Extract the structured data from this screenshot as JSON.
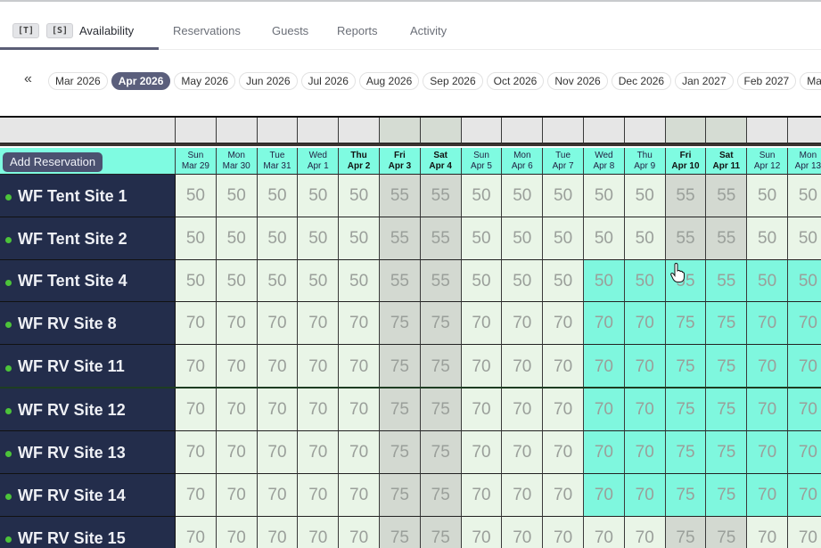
{
  "nav": {
    "badges": [
      "[T]",
      "[S]"
    ],
    "tabs": [
      {
        "label": "Availability",
        "active": true
      },
      {
        "label": "Reservations"
      },
      {
        "label": "Guests"
      },
      {
        "label": "Reports"
      },
      {
        "label": "Activity"
      }
    ]
  },
  "months": {
    "prev_icon": "«",
    "items": [
      "Mar 2026",
      "Apr 2026",
      "May 2026",
      "Jun 2026",
      "Jul 2026",
      "Aug 2026",
      "Sep 2026",
      "Oct 2026",
      "Nov 2026",
      "Dec 2026",
      "Jan 2027",
      "Feb 2027",
      "Ma"
    ],
    "active": "Apr 2026"
  },
  "grid": {
    "add_reservation": "Add Reservation",
    "days": [
      {
        "dow": "Sun",
        "date": "Mar 29",
        "weekend": false
      },
      {
        "dow": "Mon",
        "date": "Mar 30",
        "weekend": false
      },
      {
        "dow": "Tue",
        "date": "Mar 31",
        "weekend": false
      },
      {
        "dow": "Wed",
        "date": "Apr 1",
        "weekend": false
      },
      {
        "dow": "Thu",
        "date": "Apr 2",
        "weekend": false,
        "bold": true
      },
      {
        "dow": "Fri",
        "date": "Apr 3",
        "weekend": true
      },
      {
        "dow": "Sat",
        "date": "Apr 4",
        "weekend": true
      },
      {
        "dow": "Sun",
        "date": "Apr 5",
        "weekend": false
      },
      {
        "dow": "Mon",
        "date": "Apr 6",
        "weekend": false
      },
      {
        "dow": "Tue",
        "date": "Apr 7",
        "weekend": false
      },
      {
        "dow": "Wed",
        "date": "Apr 8",
        "weekend": false
      },
      {
        "dow": "Thu",
        "date": "Apr 9",
        "weekend": false
      },
      {
        "dow": "Fri",
        "date": "Apr 10",
        "weekend": true
      },
      {
        "dow": "Sat",
        "date": "Apr 11",
        "weekend": true
      },
      {
        "dow": "Sun",
        "date": "Apr 12",
        "weekend": false
      },
      {
        "dow": "Mon",
        "date": "Apr 13",
        "weekend": false
      }
    ],
    "selection": {
      "from": "Apr 8",
      "color": "#7ff7de"
    },
    "sites": [
      {
        "name": "WF Tent Site 1",
        "status": "green",
        "selected": false,
        "prices": [
          50,
          50,
          50,
          50,
          50,
          55,
          55,
          50,
          50,
          50,
          50,
          50,
          55,
          55,
          50,
          50
        ]
      },
      {
        "name": "WF Tent Site 2",
        "status": "green",
        "selected": false,
        "prices": [
          50,
          50,
          50,
          50,
          50,
          55,
          55,
          50,
          50,
          50,
          50,
          50,
          55,
          55,
          50,
          50
        ]
      },
      {
        "name": "WF Tent Site 4",
        "status": "green",
        "selected": true,
        "prices": [
          50,
          50,
          50,
          50,
          50,
          55,
          55,
          50,
          50,
          50,
          50,
          50,
          55,
          55,
          50,
          50
        ]
      },
      {
        "name": "WF RV Site 8",
        "status": "green",
        "selected": true,
        "prices": [
          70,
          70,
          70,
          70,
          70,
          75,
          75,
          70,
          70,
          70,
          70,
          70,
          75,
          75,
          70,
          70
        ]
      },
      {
        "name": "WF RV Site 11",
        "status": "green",
        "selected": true,
        "prices": [
          70,
          70,
          70,
          70,
          70,
          75,
          75,
          70,
          70,
          70,
          70,
          70,
          75,
          75,
          70,
          70
        ]
      },
      {
        "name": "WF RV Site 12",
        "status": "green",
        "selected": true,
        "prices": [
          70,
          70,
          70,
          70,
          70,
          75,
          75,
          70,
          70,
          70,
          70,
          70,
          75,
          75,
          70,
          70
        ]
      },
      {
        "name": "WF RV Site 13",
        "status": "green",
        "selected": true,
        "prices": [
          70,
          70,
          70,
          70,
          70,
          75,
          75,
          70,
          70,
          70,
          70,
          70,
          75,
          75,
          70,
          70
        ]
      },
      {
        "name": "WF RV Site 14",
        "status": "green",
        "selected": true,
        "prices": [
          70,
          70,
          70,
          70,
          70,
          75,
          75,
          70,
          70,
          70,
          70,
          70,
          75,
          75,
          70,
          70
        ]
      },
      {
        "name": "WF RV Site 15",
        "status": "green",
        "selected": false,
        "prices": [
          70,
          70,
          70,
          70,
          70,
          75,
          75,
          70,
          70,
          70,
          70,
          70,
          75,
          75,
          70,
          70
        ]
      }
    ]
  }
}
